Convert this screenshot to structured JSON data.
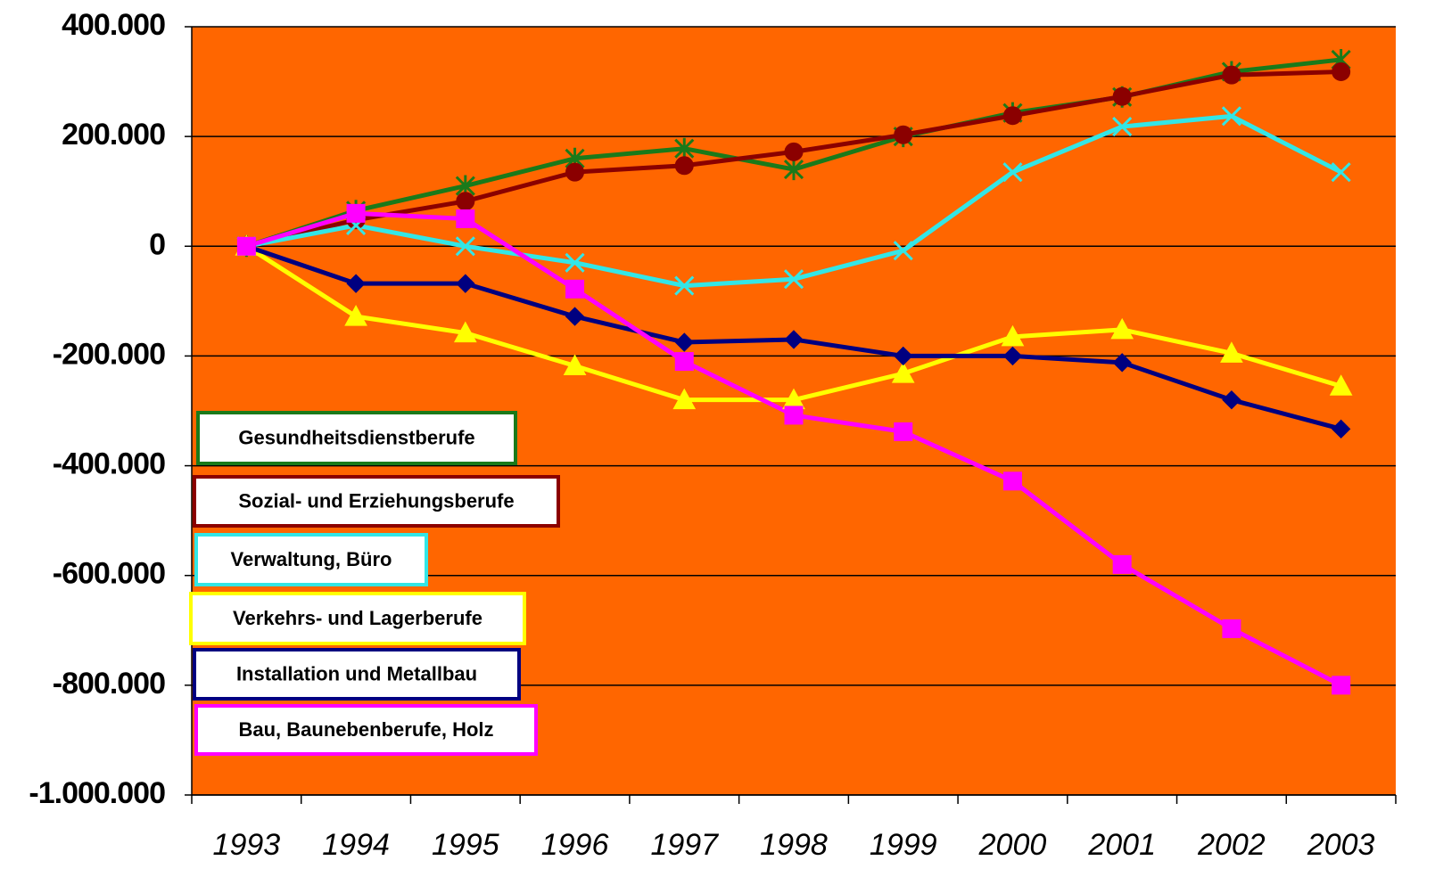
{
  "chart_data": {
    "type": "line",
    "categories": [
      "1993",
      "1994",
      "1995",
      "1996",
      "1997",
      "1998",
      "1999",
      "2000",
      "2001",
      "2002",
      "2003"
    ],
    "series": [
      {
        "name": "Gesundheitsdienstberufe",
        "color": "#1a7a1a",
        "marker": "star",
        "values": [
          0,
          65000,
          110000,
          160000,
          178000,
          140000,
          200000,
          243000,
          272000,
          318000,
          340000
        ]
      },
      {
        "name": "Sozial- und Erziehungsberufe",
        "color": "#8b0000",
        "marker": "circle",
        "values": [
          0,
          48000,
          82000,
          135000,
          147000,
          172000,
          203000,
          238000,
          273000,
          312000,
          318000
        ]
      },
      {
        "name": "Verwaltung, Büro",
        "color": "#33e6e6",
        "marker": "x",
        "values": [
          0,
          38000,
          0,
          -30000,
          -72000,
          -60000,
          -8000,
          135000,
          218000,
          237000,
          135000
        ]
      },
      {
        "name": "Verkehrs- und Lagerberufe",
        "color": "#ffff00",
        "marker": "triangle",
        "values": [
          0,
          -128000,
          -158000,
          -218000,
          -280000,
          -280000,
          -232000,
          -165000,
          -152000,
          -195000,
          -255000
        ]
      },
      {
        "name": "Installation und Metallbau",
        "color": "#000080",
        "marker": "diamond",
        "values": [
          0,
          -68000,
          -68000,
          -128000,
          -175000,
          -170000,
          -200000,
          -200000,
          -212000,
          -280000,
          -333000
        ]
      },
      {
        "name": "Bau, Baunebenberufe, Holz",
        "color": "#ff00ff",
        "marker": "square",
        "values": [
          0,
          60000,
          50000,
          -78000,
          -210000,
          -308000,
          -338000,
          -428000,
          -580000,
          -697000,
          -800000
        ]
      }
    ],
    "ylim": [
      -1000000,
      400000
    ],
    "yticks": [
      {
        "value": -1000000,
        "label": "-1.000.000"
      },
      {
        "value": -800000,
        "label": "-800.000"
      },
      {
        "value": -600000,
        "label": "-600.000"
      },
      {
        "value": -400000,
        "label": "-400.000"
      },
      {
        "value": -200000,
        "label": "-200.000"
      },
      0,
      {
        "value": 200000,
        "label": "200.000"
      },
      {
        "value": 400000,
        "label": "400.000"
      }
    ],
    "grid": true,
    "background": "#ff6600"
  }
}
